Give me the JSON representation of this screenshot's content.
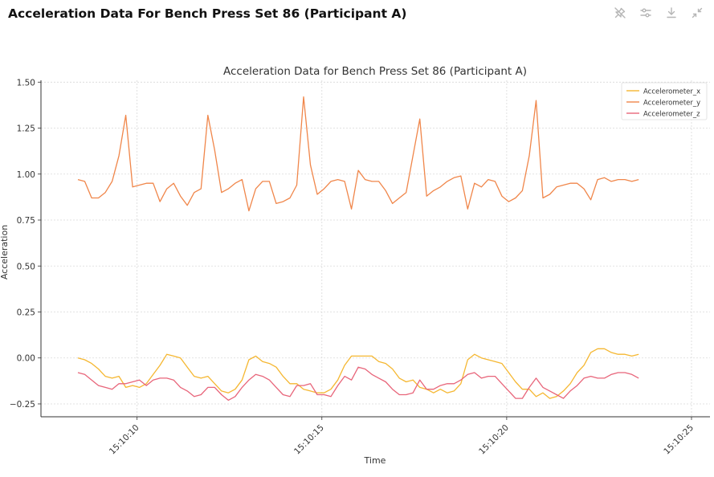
{
  "header": {
    "title": "Acceleration Data For Bench Press Set 86 (Participant A)"
  },
  "toolbar": {
    "icons": [
      "pin-off-icon",
      "sliders-icon",
      "download-icon",
      "collapse-icon"
    ],
    "icon_color": "#b5b5b5"
  },
  "chart_data": {
    "type": "line",
    "title": "Acceleration Data for Bench Press Set 86 (Participant A)",
    "xlabel": "Time",
    "ylabel": "Acceleration",
    "x_ticks": [
      "15:10:10",
      "15:10:15",
      "15:10:20",
      "15:10:25"
    ],
    "x_tick_values": [
      10,
      15,
      20,
      25
    ],
    "x_start": 8.4,
    "x_step": 0.185,
    "xlim": [
      7.4,
      25.5
    ],
    "ylim": [
      -0.32,
      1.51
    ],
    "y_ticks": [
      -0.25,
      0.0,
      0.25,
      0.5,
      0.75,
      1.0,
      1.25,
      1.5
    ],
    "y_tick_labels": [
      "−0.25",
      "0.00",
      "0.25",
      "0.50",
      "0.75",
      "1.00",
      "1.25",
      "1.50"
    ],
    "grid": true,
    "legend_position": "top-right",
    "series": [
      {
        "name": "Accelerometer_x",
        "color": "#f5b731",
        "values": [
          0.0,
          -0.01,
          -0.03,
          -0.06,
          -0.1,
          -0.11,
          -0.1,
          -0.16,
          -0.15,
          -0.16,
          -0.14,
          -0.09,
          -0.04,
          0.02,
          0.01,
          0.0,
          -0.05,
          -0.1,
          -0.11,
          -0.1,
          -0.14,
          -0.18,
          -0.19,
          -0.17,
          -0.12,
          -0.01,
          0.01,
          -0.02,
          -0.03,
          -0.05,
          -0.1,
          -0.14,
          -0.14,
          -0.17,
          -0.18,
          -0.19,
          -0.19,
          -0.17,
          -0.12,
          -0.04,
          0.01,
          0.01,
          0.01,
          0.01,
          -0.02,
          -0.03,
          -0.06,
          -0.11,
          -0.13,
          -0.12,
          -0.16,
          -0.17,
          -0.19,
          -0.17,
          -0.19,
          -0.18,
          -0.14,
          -0.01,
          0.02,
          0.0,
          -0.01,
          -0.02,
          -0.03,
          -0.08,
          -0.13,
          -0.17,
          -0.17,
          -0.21,
          -0.19,
          -0.22,
          -0.21,
          -0.18,
          -0.14,
          -0.08,
          -0.04,
          0.03,
          0.05,
          0.05,
          0.03,
          0.02,
          0.02,
          0.01,
          0.02
        ]
      },
      {
        "name": "Accelerometer_y",
        "color": "#f0864a",
        "values": [
          0.97,
          0.96,
          0.87,
          0.87,
          0.9,
          0.96,
          1.1,
          1.32,
          0.93,
          0.94,
          0.95,
          0.95,
          0.85,
          0.92,
          0.95,
          0.88,
          0.83,
          0.9,
          0.92,
          1.32,
          1.13,
          0.9,
          0.92,
          0.95,
          0.97,
          0.8,
          0.92,
          0.96,
          0.96,
          0.84,
          0.85,
          0.87,
          0.94,
          1.42,
          1.05,
          0.89,
          0.92,
          0.96,
          0.97,
          0.96,
          0.81,
          1.02,
          0.97,
          0.96,
          0.96,
          0.91,
          0.84,
          0.87,
          0.9,
          1.1,
          1.3,
          0.88,
          0.91,
          0.93,
          0.96,
          0.98,
          0.99,
          0.81,
          0.95,
          0.93,
          0.97,
          0.96,
          0.88,
          0.85,
          0.87,
          0.91,
          1.1,
          1.4,
          0.87,
          0.89,
          0.93,
          0.94,
          0.95,
          0.95,
          0.92,
          0.86,
          0.97,
          0.98,
          0.96,
          0.97,
          0.97,
          0.96,
          0.97
        ]
      },
      {
        "name": "Accelerometer_z",
        "color": "#e8657a",
        "values": [
          -0.08,
          -0.09,
          -0.12,
          -0.15,
          -0.16,
          -0.17,
          -0.14,
          -0.14,
          -0.13,
          -0.12,
          -0.15,
          -0.12,
          -0.11,
          -0.11,
          -0.12,
          -0.16,
          -0.18,
          -0.21,
          -0.2,
          -0.16,
          -0.16,
          -0.2,
          -0.23,
          -0.21,
          -0.16,
          -0.12,
          -0.09,
          -0.1,
          -0.12,
          -0.16,
          -0.2,
          -0.21,
          -0.15,
          -0.15,
          -0.14,
          -0.2,
          -0.2,
          -0.21,
          -0.15,
          -0.1,
          -0.12,
          -0.05,
          -0.06,
          -0.09,
          -0.11,
          -0.13,
          -0.17,
          -0.2,
          -0.2,
          -0.19,
          -0.12,
          -0.17,
          -0.17,
          -0.15,
          -0.14,
          -0.14,
          -0.12,
          -0.09,
          -0.08,
          -0.11,
          -0.1,
          -0.1,
          -0.14,
          -0.18,
          -0.22,
          -0.22,
          -0.16,
          -0.11,
          -0.16,
          -0.18,
          -0.2,
          -0.22,
          -0.18,
          -0.15,
          -0.11,
          -0.1,
          -0.11,
          -0.11,
          -0.09,
          -0.08,
          -0.08,
          -0.09,
          -0.11
        ]
      }
    ]
  }
}
